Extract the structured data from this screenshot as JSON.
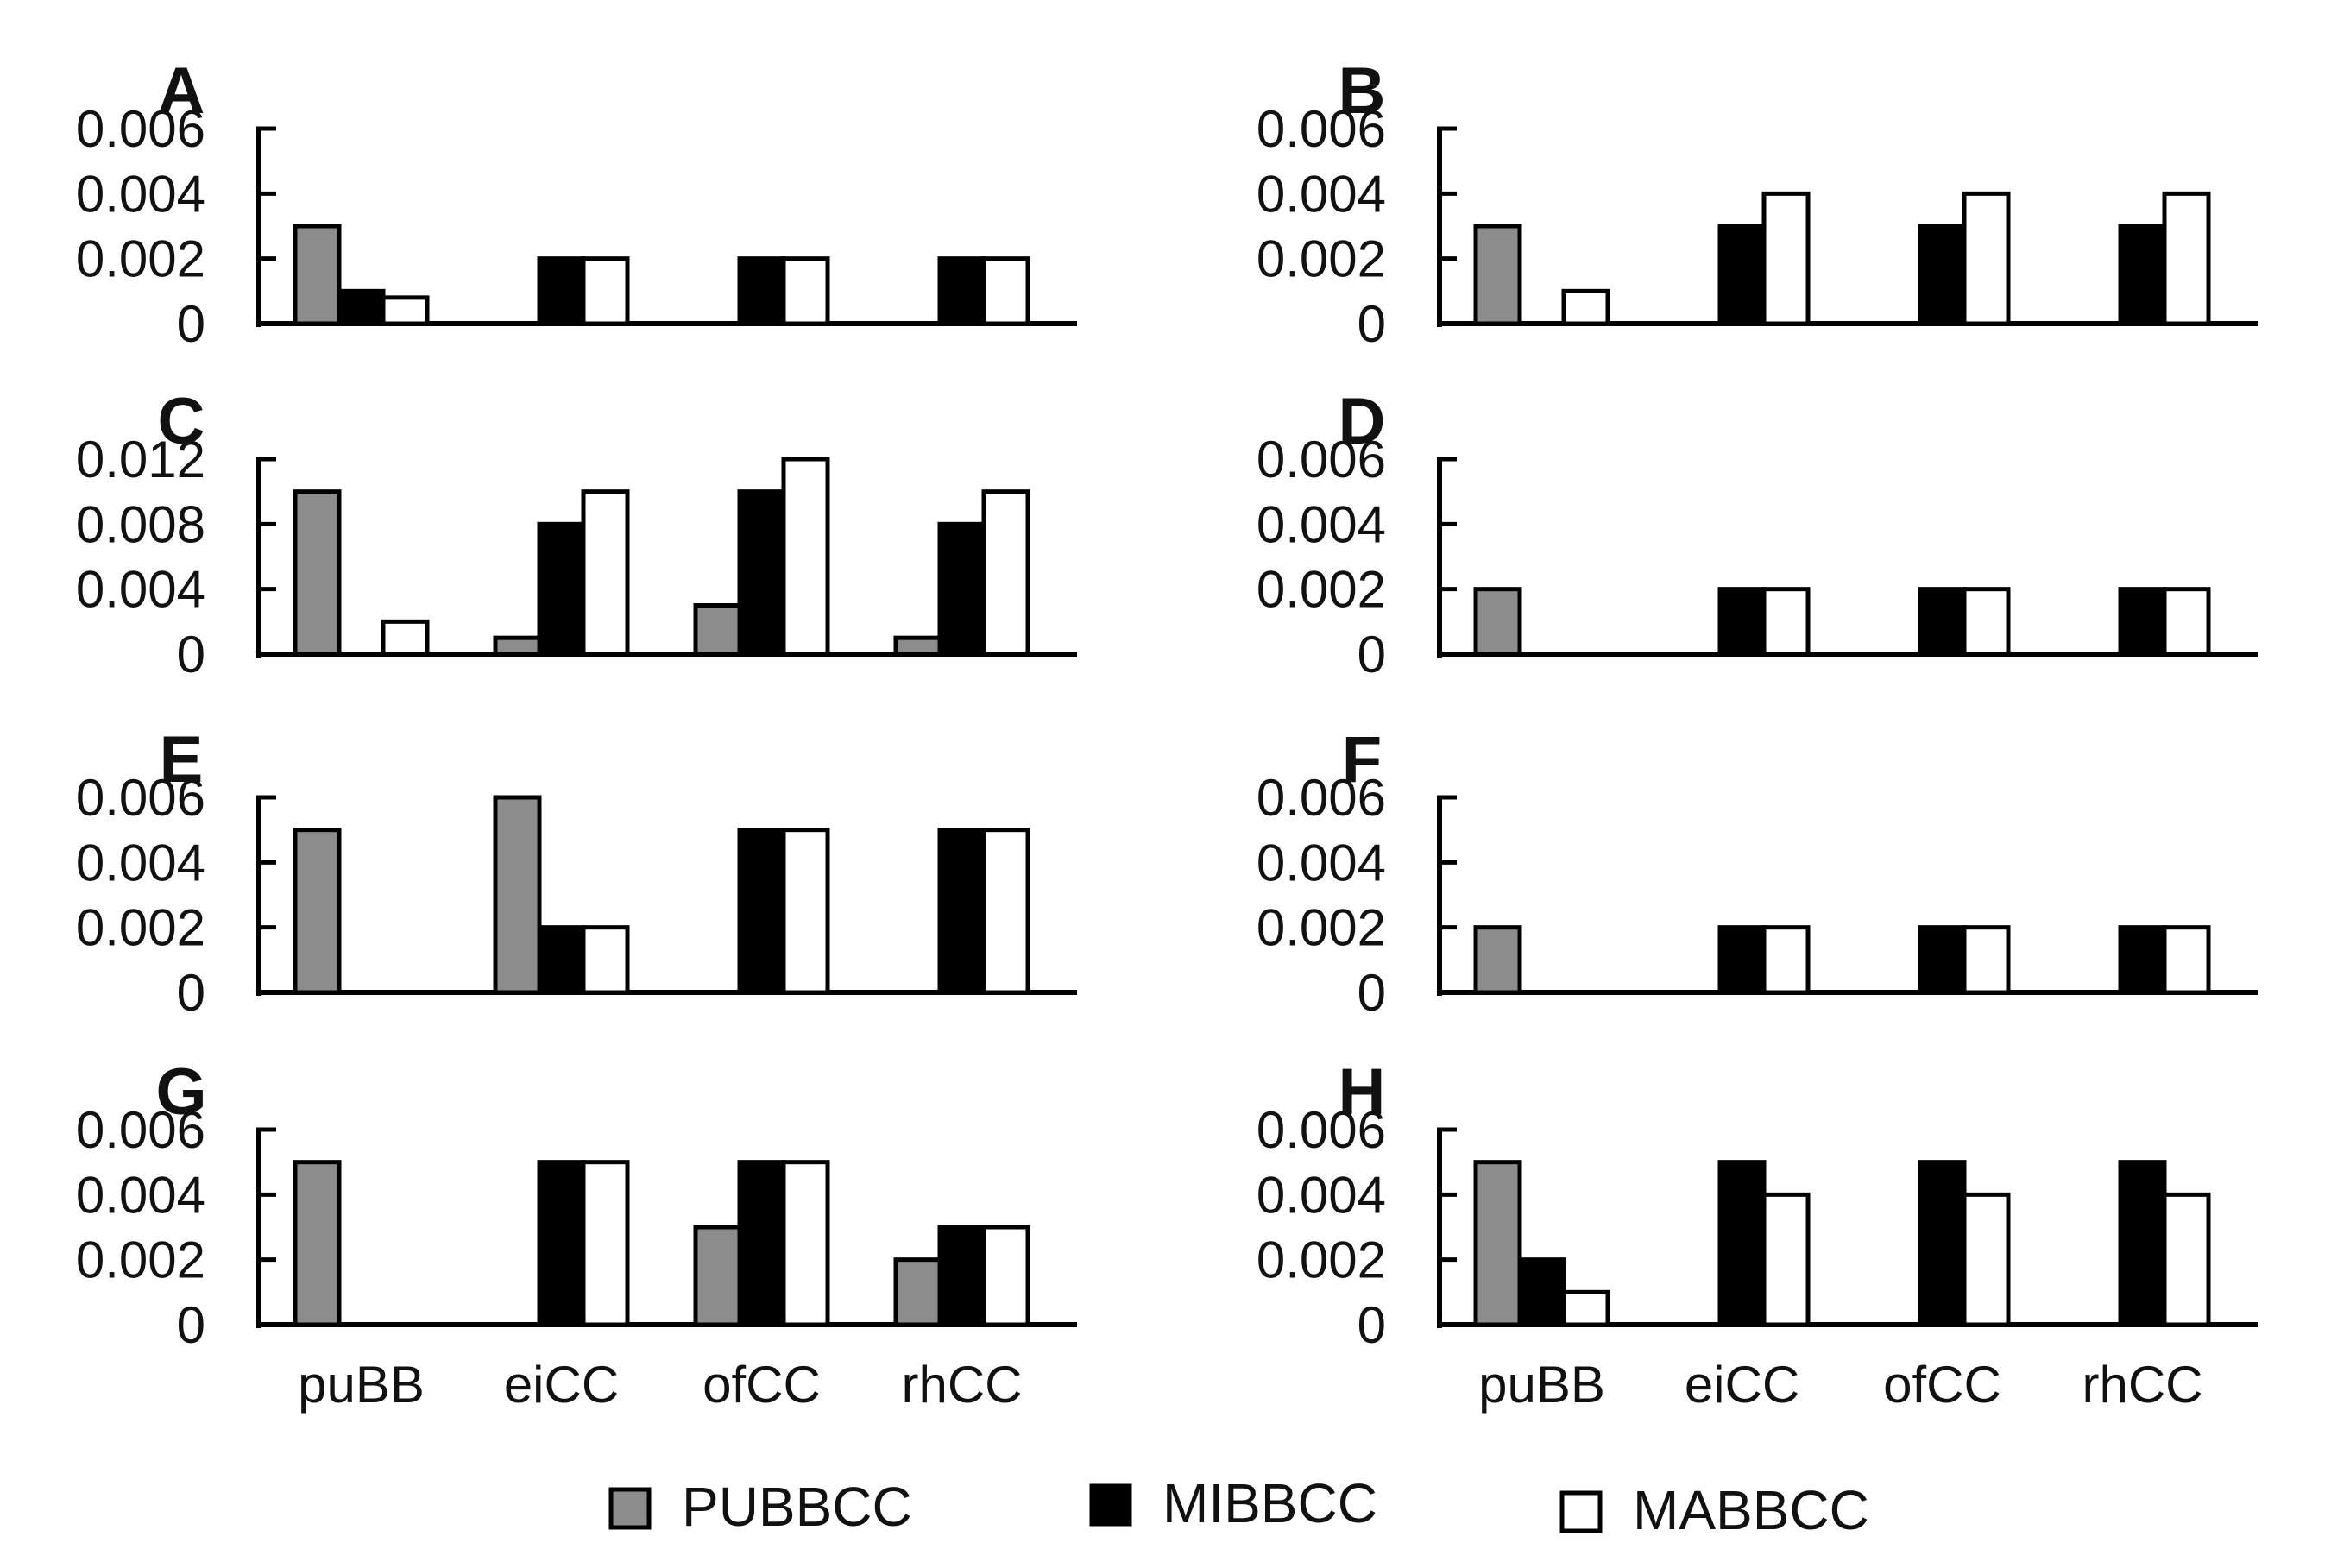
{
  "series_colors": {
    "PUBBCC": "#8c8c8c",
    "MIBBCC": "#000000",
    "MABBCC": "#ffffff"
  },
  "legend": [
    "PUBBCC",
    "MIBBCC",
    "MABBCC"
  ],
  "chart_data": [
    {
      "panel": "A",
      "type": "bar",
      "categories": [
        "puBB",
        "eiCC",
        "ofCC",
        "rhCC"
      ],
      "ylim": [
        0,
        0.006
      ],
      "yticks": [
        "0.006",
        "0.004",
        "0.002",
        "0"
      ],
      "series": [
        {
          "name": "PUBBCC",
          "values": [
            0.003,
            0,
            0,
            0
          ]
        },
        {
          "name": "MIBBCC",
          "values": [
            0.001,
            0.002,
            0.002,
            0.002
          ]
        },
        {
          "name": "MABBCC",
          "values": [
            0.0008,
            0.002,
            0.002,
            0.002
          ]
        }
      ]
    },
    {
      "panel": "B",
      "type": "bar",
      "categories": [
        "puBB",
        "eiCC",
        "ofCC",
        "rhCC"
      ],
      "ylim": [
        0,
        0.006
      ],
      "yticks": [
        "0.006",
        "0.004",
        "0.002",
        "0"
      ],
      "series": [
        {
          "name": "PUBBCC",
          "values": [
            0.003,
            0,
            0,
            0
          ]
        },
        {
          "name": "MIBBCC",
          "values": [
            0,
            0.003,
            0.003,
            0.003
          ]
        },
        {
          "name": "MABBCC",
          "values": [
            0.001,
            0.004,
            0.004,
            0.004
          ]
        }
      ]
    },
    {
      "panel": "C",
      "type": "bar",
      "categories": [
        "puBB",
        "eiCC",
        "ofCC",
        "rhCC"
      ],
      "ylim": [
        0,
        0.012
      ],
      "yticks": [
        "0.012",
        "0.008",
        "0.004",
        "0"
      ],
      "series": [
        {
          "name": "PUBBCC",
          "values": [
            0.01,
            0.001,
            0.003,
            0.001
          ]
        },
        {
          "name": "MIBBCC",
          "values": [
            0,
            0.008,
            0.01,
            0.008
          ]
        },
        {
          "name": "MABBCC",
          "values": [
            0.002,
            0.01,
            0.012,
            0.01
          ]
        }
      ]
    },
    {
      "panel": "D",
      "type": "bar",
      "categories": [
        "puBB",
        "eiCC",
        "ofCC",
        "rhCC"
      ],
      "ylim": [
        0,
        0.006
      ],
      "yticks": [
        "0.006",
        "0.004",
        "0.002",
        "0"
      ],
      "series": [
        {
          "name": "PUBBCC",
          "values": [
            0.002,
            0,
            0,
            0
          ]
        },
        {
          "name": "MIBBCC",
          "values": [
            0,
            0.002,
            0.002,
            0.002
          ]
        },
        {
          "name": "MABBCC",
          "values": [
            0,
            0.002,
            0.002,
            0.002
          ]
        }
      ]
    },
    {
      "panel": "E",
      "type": "bar",
      "categories": [
        "puBB",
        "eiCC",
        "ofCC",
        "rhCC"
      ],
      "ylim": [
        0,
        0.006
      ],
      "yticks": [
        "0.006",
        "0.004",
        "0.002",
        "0"
      ],
      "series": [
        {
          "name": "PUBBCC",
          "values": [
            0.005,
            0.006,
            0,
            0
          ]
        },
        {
          "name": "MIBBCC",
          "values": [
            0,
            0.002,
            0.005,
            0.005
          ]
        },
        {
          "name": "MABBCC",
          "values": [
            0,
            0.002,
            0.005,
            0.005
          ]
        }
      ]
    },
    {
      "panel": "F",
      "type": "bar",
      "categories": [
        "puBB",
        "eiCC",
        "ofCC",
        "rhCC"
      ],
      "ylim": [
        0,
        0.006
      ],
      "yticks": [
        "0.006",
        "0.004",
        "0.002",
        "0"
      ],
      "series": [
        {
          "name": "PUBBCC",
          "values": [
            0.002,
            0,
            0,
            0
          ]
        },
        {
          "name": "MIBBCC",
          "values": [
            0,
            0.002,
            0.002,
            0.002
          ]
        },
        {
          "name": "MABBCC",
          "values": [
            0,
            0.002,
            0.002,
            0.002
          ]
        }
      ]
    },
    {
      "panel": "G",
      "type": "bar",
      "categories": [
        "puBB",
        "eiCC",
        "ofCC",
        "rhCC"
      ],
      "ylim": [
        0,
        0.006
      ],
      "yticks": [
        "0.006",
        "0.004",
        "0.002",
        "0"
      ],
      "series": [
        {
          "name": "PUBBCC",
          "values": [
            0.005,
            0,
            0.003,
            0.002
          ]
        },
        {
          "name": "MIBBCC",
          "values": [
            0,
            0.005,
            0.005,
            0.003
          ]
        },
        {
          "name": "MABBCC",
          "values": [
            0,
            0.005,
            0.005,
            0.003
          ]
        }
      ]
    },
    {
      "panel": "H",
      "type": "bar",
      "categories": [
        "puBB",
        "eiCC",
        "ofCC",
        "rhCC"
      ],
      "ylim": [
        0,
        0.006
      ],
      "yticks": [
        "0.006",
        "0.004",
        "0.002",
        "0"
      ],
      "series": [
        {
          "name": "PUBBCC",
          "values": [
            0.005,
            0,
            0,
            0
          ]
        },
        {
          "name": "MIBBCC",
          "values": [
            0.002,
            0.005,
            0.005,
            0.005
          ]
        },
        {
          "name": "MABBCC",
          "values": [
            0.001,
            0.004,
            0.004,
            0.004
          ]
        }
      ]
    }
  ]
}
